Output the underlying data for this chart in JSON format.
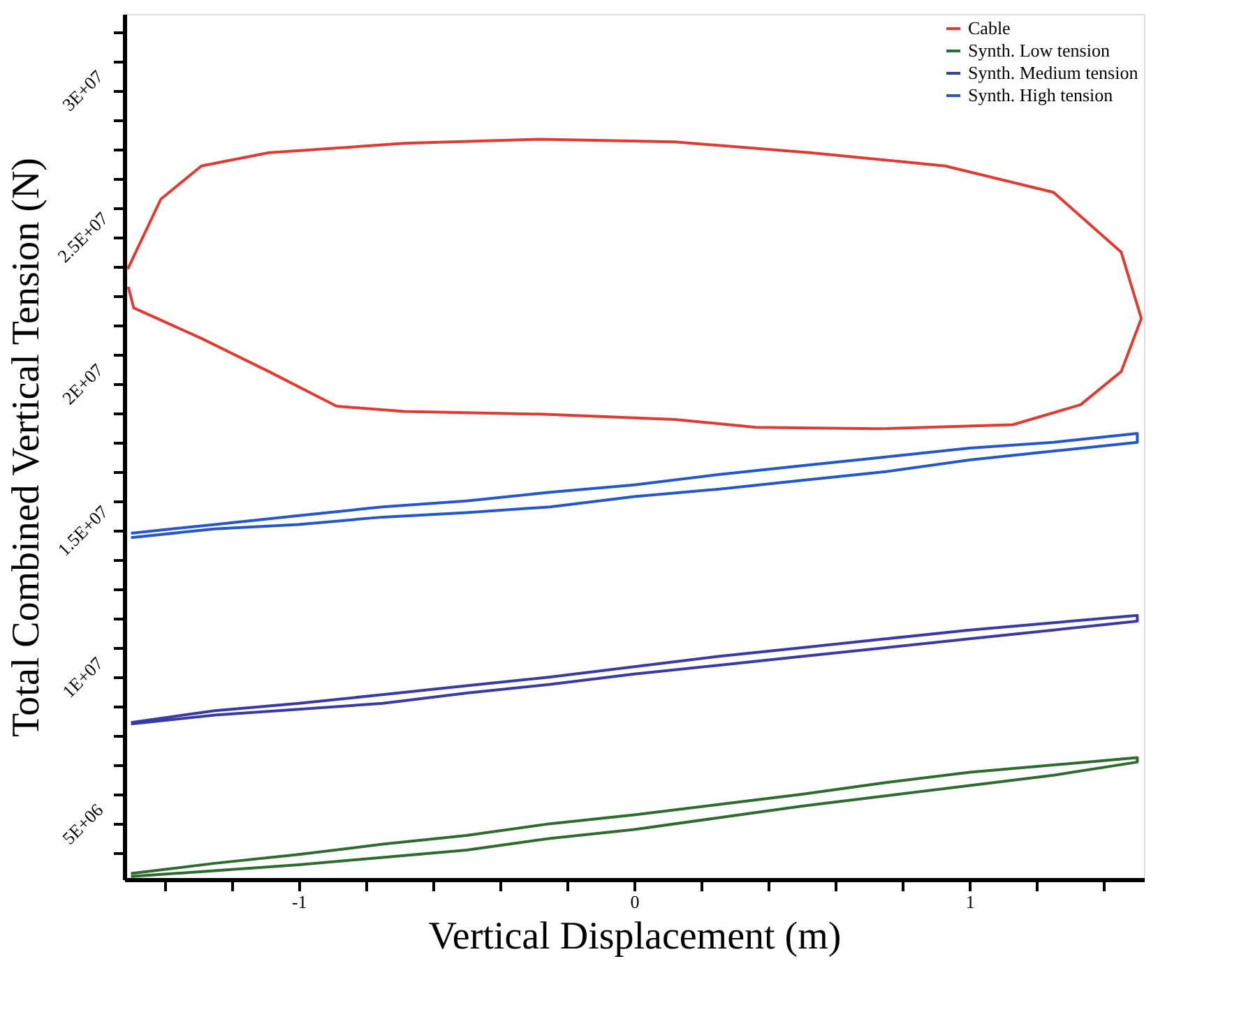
{
  "chart_data": {
    "type": "line",
    "xlabel": "Vertical Displacement (m)",
    "ylabel": "Total Combined Vertical Tension (N)",
    "xlim": [
      -1.52,
      1.52
    ],
    "ylim": [
      3100000,
      32600000
    ],
    "xticks": [
      {
        "value": -1.4,
        "label": null
      },
      {
        "value": -1.2,
        "label": null
      },
      -1,
      {
        "value": -0.8,
        "label": null
      },
      {
        "value": -0.6,
        "label": null
      },
      {
        "value": -0.4,
        "label": null
      },
      {
        "value": -0.2,
        "label": null
      },
      0,
      {
        "value": 0.2,
        "label": null
      },
      {
        "value": 0.4,
        "label": null
      },
      {
        "value": 0.6,
        "label": null
      },
      {
        "value": 0.8,
        "label": null
      },
      1,
      {
        "value": 1.2,
        "label": null
      },
      {
        "value": 1.4,
        "label": null
      }
    ],
    "yticks": [
      {
        "value": 4000000,
        "label": null
      },
      {
        "value": 5000000,
        "label": "5E+06"
      },
      {
        "value": 6000000,
        "label": null
      },
      {
        "value": 7000000,
        "label": null
      },
      {
        "value": 8000000,
        "label": null
      },
      {
        "value": 9000000,
        "label": null
      },
      {
        "value": 10000000,
        "label": "1E+07"
      },
      {
        "value": 11000000,
        "label": null
      },
      {
        "value": 12000000,
        "label": null
      },
      {
        "value": 13000000,
        "label": null
      },
      {
        "value": 14000000,
        "label": null
      },
      {
        "value": 15000000,
        "label": "1.5E+07"
      },
      {
        "value": 16000000,
        "label": null
      },
      {
        "value": 17000000,
        "label": null
      },
      {
        "value": 18000000,
        "label": null
      },
      {
        "value": 19000000,
        "label": null
      },
      {
        "value": 20000000,
        "label": "2E+07"
      },
      {
        "value": 21000000,
        "label": null
      },
      {
        "value": 22000000,
        "label": null
      },
      {
        "value": 23000000,
        "label": null
      },
      {
        "value": 24000000,
        "label": null
      },
      {
        "value": 25000000,
        "label": "2.5E+07"
      },
      {
        "value": 26000000,
        "label": null
      },
      {
        "value": 27000000,
        "label": null
      },
      {
        "value": 28000000,
        "label": null
      },
      {
        "value": 29000000,
        "label": null
      },
      {
        "value": 30000000,
        "label": "3E+07"
      },
      {
        "value": 31000000,
        "label": null
      },
      {
        "value": 32000000,
        "label": null
      }
    ],
    "grid": false,
    "legend": "top right",
    "marker": "none",
    "line_style": "solid",
    "series": [
      {
        "name": "Cable",
        "color": "#e03a32",
        "x": [
          -1.51,
          -1.411,
          -1.29,
          -1.089,
          -0.685,
          -0.282,
          0.121,
          0.524,
          0.927,
          1.25,
          1.452,
          1.512,
          1.452,
          1.331,
          1.129,
          0.726,
          0.363,
          0.121,
          -0.282,
          -0.685,
          -0.887,
          -1.089,
          -1.29,
          -1.492,
          -1.508
        ],
        "values": [
          23900000,
          26290000,
          27420000,
          27870000,
          28190000,
          28330000,
          28240000,
          27870000,
          27420000,
          26520000,
          24480000,
          22220000,
          20410000,
          19280000,
          18600000,
          18460000,
          18510000,
          18780000,
          18960000,
          19050000,
          19230000,
          20410000,
          21540000,
          22580000,
          23300000
        ]
      },
      {
        "name": "Synth. Low tension",
        "color": "#2e6b2e",
        "x": [
          -1.5,
          -1.25,
          -1,
          -0.75,
          -0.5,
          -0.25,
          0,
          0.25,
          0.5,
          0.75,
          1,
          1.25,
          1.5,
          1.5,
          1.25,
          1,
          0.75,
          0.5,
          0.25,
          0,
          -0.25,
          -0.5,
          -0.75,
          -1,
          -1.25,
          -1.5
        ],
        "values": [
          3200000,
          3400000,
          3600000,
          3850000,
          4100000,
          4500000,
          4800000,
          5200000,
          5600000,
          5950000,
          6300000,
          6650000,
          7100000,
          7250000,
          7000000,
          6750000,
          6400000,
          6000000,
          5650000,
          5300000,
          5000000,
          4600000,
          4300000,
          3950000,
          3650000,
          3300000
        ]
      },
      {
        "name": "Synth. Medium tension",
        "color": "#3a3aa6",
        "x": [
          -1.5,
          -1.25,
          -1,
          -0.75,
          -0.5,
          -0.25,
          0,
          0.25,
          0.5,
          0.75,
          1,
          1.25,
          1.5,
          1.5,
          1.25,
          1,
          0.75,
          0.5,
          0.25,
          0,
          -0.25,
          -0.5,
          -0.75,
          -1,
          -1.25,
          -1.5
        ],
        "values": [
          8400000,
          8700000,
          8900000,
          9100000,
          9450000,
          9750000,
          10100000,
          10400000,
          10700000,
          11000000,
          11300000,
          11600000,
          11900000,
          12100000,
          11850000,
          11600000,
          11300000,
          11000000,
          10700000,
          10350000,
          10000000,
          9700000,
          9400000,
          9100000,
          8850000,
          8450000
        ]
      },
      {
        "name": "Synth. High tension",
        "color": "#2456cc",
        "x": [
          -1.5,
          -1.25,
          -1,
          -0.75,
          -0.5,
          -0.25,
          0,
          0.25,
          0.5,
          0.75,
          1,
          1.25,
          1.5,
          1.5,
          1.25,
          1,
          0.75,
          0.5,
          0.25,
          0,
          -0.25,
          -0.5,
          -0.75,
          -1,
          -1.25,
          -1.5
        ],
        "values": [
          14750000,
          15050000,
          15200000,
          15450000,
          15600000,
          15800000,
          16150000,
          16400000,
          16700000,
          17000000,
          17400000,
          17700000,
          18000000,
          18300000,
          18000000,
          17800000,
          17500000,
          17200000,
          16900000,
          16550000,
          16300000,
          16000000,
          15800000,
          15500000,
          15200000,
          14900000
        ]
      }
    ]
  }
}
